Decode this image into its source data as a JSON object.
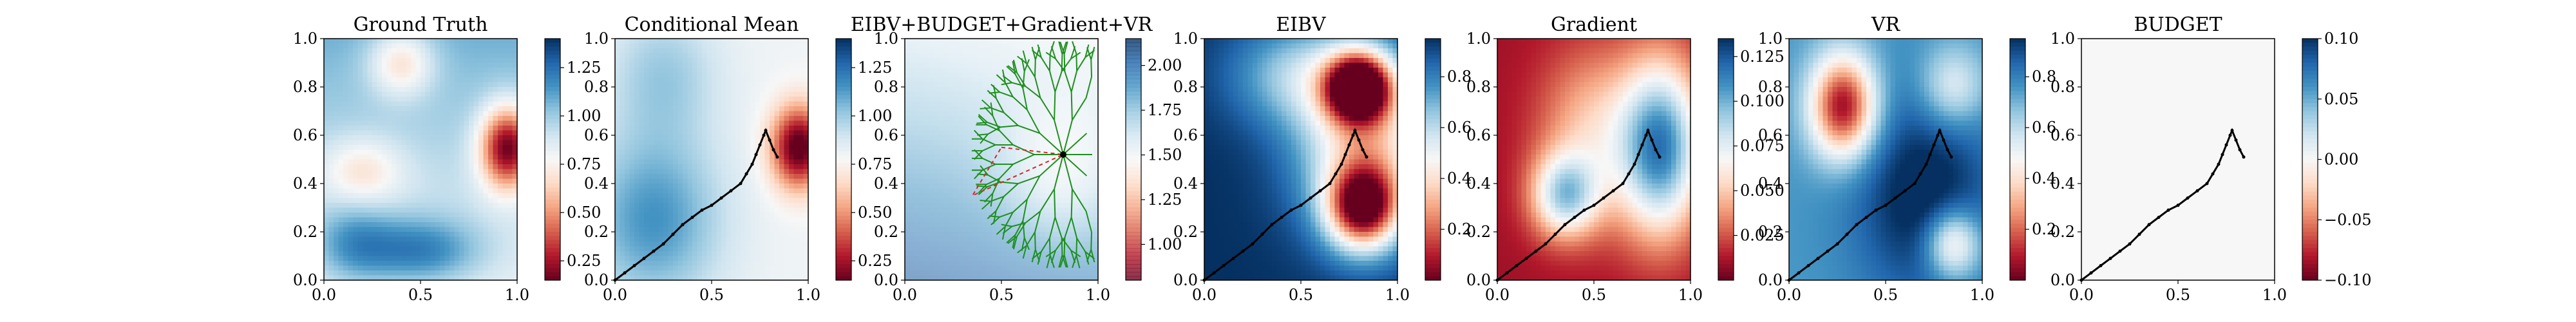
{
  "figure": {
    "background": "#ffffff",
    "path_color": "#000000",
    "tree_color": "#1f8f1f",
    "planned_segment_color": "#d62728",
    "target_color": "#000000"
  },
  "chart_data": [
    {
      "type": "heatmap",
      "title": "Ground Truth",
      "field": "ground_truth",
      "xlim": [
        0,
        1
      ],
      "ylim": [
        0,
        1
      ],
      "xticks": [
        "0.0",
        "0.5",
        "1.0"
      ],
      "yticks": [
        "0.0",
        "0.2",
        "0.4",
        "0.6",
        "0.8",
        "1.0"
      ],
      "colormap": "RdBu",
      "vmin": 0.15,
      "vmax": 1.4,
      "colorbar_ticks": [
        "0.25",
        "0.50",
        "0.75",
        "1.00",
        "1.25"
      ],
      "colorbar_tick_values": [
        0.25,
        0.5,
        0.75,
        1.0,
        1.25
      ],
      "show_path": false
    },
    {
      "type": "heatmap",
      "title": "Conditional Mean",
      "field": "conditional_mean",
      "xlim": [
        0,
        1
      ],
      "ylim": [
        0,
        1
      ],
      "xticks": [
        "0.0",
        "0.5",
        "1.0"
      ],
      "yticks": [
        "0.0",
        "0.2",
        "0.4",
        "0.6",
        "0.8",
        "1.0"
      ],
      "colormap": "RdBu",
      "vmin": 0.15,
      "vmax": 1.4,
      "colorbar_ticks": [
        "0.25",
        "0.50",
        "0.75",
        "1.00",
        "1.25"
      ],
      "colorbar_tick_values": [
        0.25,
        0.5,
        0.75,
        1.0,
        1.25
      ],
      "show_path": true
    },
    {
      "type": "heatmap",
      "title": "EIBV+BUDGET+Gradient+VR",
      "field": "cost_total",
      "xlim": [
        0,
        1
      ],
      "ylim": [
        0,
        1
      ],
      "xticks": [
        "0.0",
        "0.5",
        "1.0"
      ],
      "yticks": [
        "0.0",
        "0.2",
        "0.4",
        "0.6",
        "0.8",
        "1.0"
      ],
      "colormap": "RdBu",
      "vmin": 0.8,
      "vmax": 2.15,
      "alpha": 0.55,
      "colorbar_ticks": [
        "1.00",
        "1.25",
        "1.50",
        "1.75",
        "2.00"
      ],
      "colorbar_tick_values": [
        1.0,
        1.25,
        1.5,
        1.75,
        2.0
      ],
      "show_path": false,
      "show_tree": true,
      "tree_root": [
        0.82,
        0.52
      ],
      "planned_target": [
        0.5,
        0.55
      ]
    },
    {
      "type": "heatmap",
      "title": "EIBV",
      "field": "eibv",
      "xlim": [
        0,
        1
      ],
      "ylim": [
        0,
        1
      ],
      "xticks": [
        "0.0",
        "0.5",
        "1.0"
      ],
      "yticks": [
        "0.0",
        "0.2",
        "0.4",
        "0.6",
        "0.8",
        "1.0"
      ],
      "colormap": "RdBu",
      "vmin": 0.0,
      "vmax": 0.95,
      "colorbar_ticks": [
        "0.2",
        "0.4",
        "0.6",
        "0.8"
      ],
      "colorbar_tick_values": [
        0.2,
        0.4,
        0.6,
        0.8
      ],
      "show_path": true
    },
    {
      "type": "heatmap",
      "title": "Gradient",
      "field": "gradient",
      "xlim": [
        0,
        1
      ],
      "ylim": [
        0,
        1
      ],
      "xticks": [
        "0.0",
        "0.5",
        "1.0"
      ],
      "yticks": [
        "0.0",
        "0.2",
        "0.4",
        "0.6",
        "0.8",
        "1.0"
      ],
      "colormap": "RdBu",
      "vmin": 0.0,
      "vmax": 0.135,
      "colorbar_ticks": [
        "0.025",
        "0.050",
        "0.075",
        "0.100",
        "0.125"
      ],
      "colorbar_tick_values": [
        0.025,
        0.05,
        0.075,
        0.1,
        0.125
      ],
      "show_path": true
    },
    {
      "type": "heatmap",
      "title": "VR",
      "field": "vr",
      "xlim": [
        0,
        1
      ],
      "ylim": [
        0,
        1
      ],
      "xticks": [
        "0.0",
        "0.5",
        "1.0"
      ],
      "yticks": [
        "0.0",
        "0.2",
        "0.4",
        "0.6",
        "0.8",
        "1.0"
      ],
      "colormap": "RdBu",
      "vmin": 0.0,
      "vmax": 0.95,
      "colorbar_ticks": [
        "0.2",
        "0.4",
        "0.6",
        "0.8"
      ],
      "colorbar_tick_values": [
        0.2,
        0.4,
        0.6,
        0.8
      ],
      "show_path": true
    },
    {
      "type": "heatmap",
      "title": "BUDGET",
      "field": "budget",
      "xlim": [
        0,
        1
      ],
      "ylim": [
        0,
        1
      ],
      "xticks": [
        "0.0",
        "0.5",
        "1.0"
      ],
      "yticks": [
        "0.0",
        "0.2",
        "0.4",
        "0.6",
        "0.8",
        "1.0"
      ],
      "colormap": "RdBu",
      "vmin": -0.1,
      "vmax": 0.1,
      "colorbar_ticks": [
        "−0.10",
        "−0.05",
        "0.00",
        "0.05",
        "0.10"
      ],
      "colorbar_tick_values": [
        -0.1,
        -0.05,
        0.0,
        0.05,
        0.1
      ],
      "show_path": true
    }
  ],
  "agent_path": [
    [
      0.0,
      0.0
    ],
    [
      0.05,
      0.03
    ],
    [
      0.1,
      0.06
    ],
    [
      0.15,
      0.09
    ],
    [
      0.2,
      0.12
    ],
    [
      0.25,
      0.15
    ],
    [
      0.3,
      0.19
    ],
    [
      0.35,
      0.23
    ],
    [
      0.4,
      0.26
    ],
    [
      0.45,
      0.29
    ],
    [
      0.5,
      0.31
    ],
    [
      0.55,
      0.34
    ],
    [
      0.6,
      0.37
    ],
    [
      0.65,
      0.4
    ],
    [
      0.68,
      0.44
    ],
    [
      0.71,
      0.48
    ],
    [
      0.73,
      0.52
    ],
    [
      0.75,
      0.56
    ],
    [
      0.77,
      0.6
    ],
    [
      0.78,
      0.62
    ],
    [
      0.8,
      0.58
    ],
    [
      0.82,
      0.54
    ],
    [
      0.84,
      0.51
    ]
  ]
}
